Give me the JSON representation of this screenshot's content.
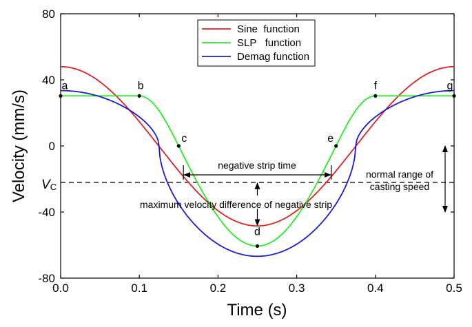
{
  "chart_data": {
    "type": "line",
    "title": "",
    "xlabel": "Time (s)",
    "ylabel": "Velocity (mm/s)",
    "xlim": [
      0.0,
      0.5
    ],
    "ylim": [
      -80,
      80
    ],
    "xticks": [
      0.0,
      0.1,
      0.2,
      0.3,
      0.4,
      0.5
    ],
    "xtick_labels": [
      "0.0",
      "0.1",
      "0.2",
      "0.3",
      "0.4",
      "0.5"
    ],
    "yticks": [
      80,
      40,
      0,
      -40,
      -80
    ],
    "ytick_labels": [
      "80",
      "40",
      "0",
      "-40",
      "-80"
    ],
    "vc_value": -22,
    "vc_label_main": "V",
    "vc_label_sub": "C",
    "series": [
      {
        "name": "Sine  function",
        "color": "#e02020",
        "kind": "sine",
        "offset": -0.2,
        "amplitude": 48.2,
        "period": 0.5
      },
      {
        "name": "SLP   function",
        "color": "#22ee22",
        "kind": "slp",
        "plateau": 30.3,
        "minimum": -60.6,
        "t_b": 0.1,
        "t_c": 0.15,
        "t_d": 0.25,
        "t_e": 0.35,
        "t_f": 0.4
      },
      {
        "name": "Demag function",
        "color": "#1a1ad8",
        "kind": "demag",
        "top": 33.5,
        "minimum": -66.8
      }
    ],
    "points": [
      {
        "label": "a",
        "x": 0.0,
        "y": 30.3
      },
      {
        "label": "b",
        "x": 0.1,
        "y": 30.3
      },
      {
        "label": "c",
        "x": 0.15,
        "y": 0
      },
      {
        "label": "d",
        "x": 0.25,
        "y": -60.6
      },
      {
        "label": "e",
        "x": 0.35,
        "y": 0
      },
      {
        "label": "f",
        "x": 0.4,
        "y": 30.3
      },
      {
        "label": "g",
        "x": 0.5,
        "y": 30.3
      }
    ],
    "negative_strip_start": 0.156,
    "negative_strip_end": 0.344,
    "normal_range_top": 0,
    "normal_range_bottom": -40,
    "annotations": {
      "negative_strip_time": "negative strip time",
      "max_velocity_difference": "maximum velocity difference of negative strip",
      "normal_range_line1": "normal range of",
      "normal_range_line2": "casting speed"
    },
    "legend_position": "top-center"
  }
}
